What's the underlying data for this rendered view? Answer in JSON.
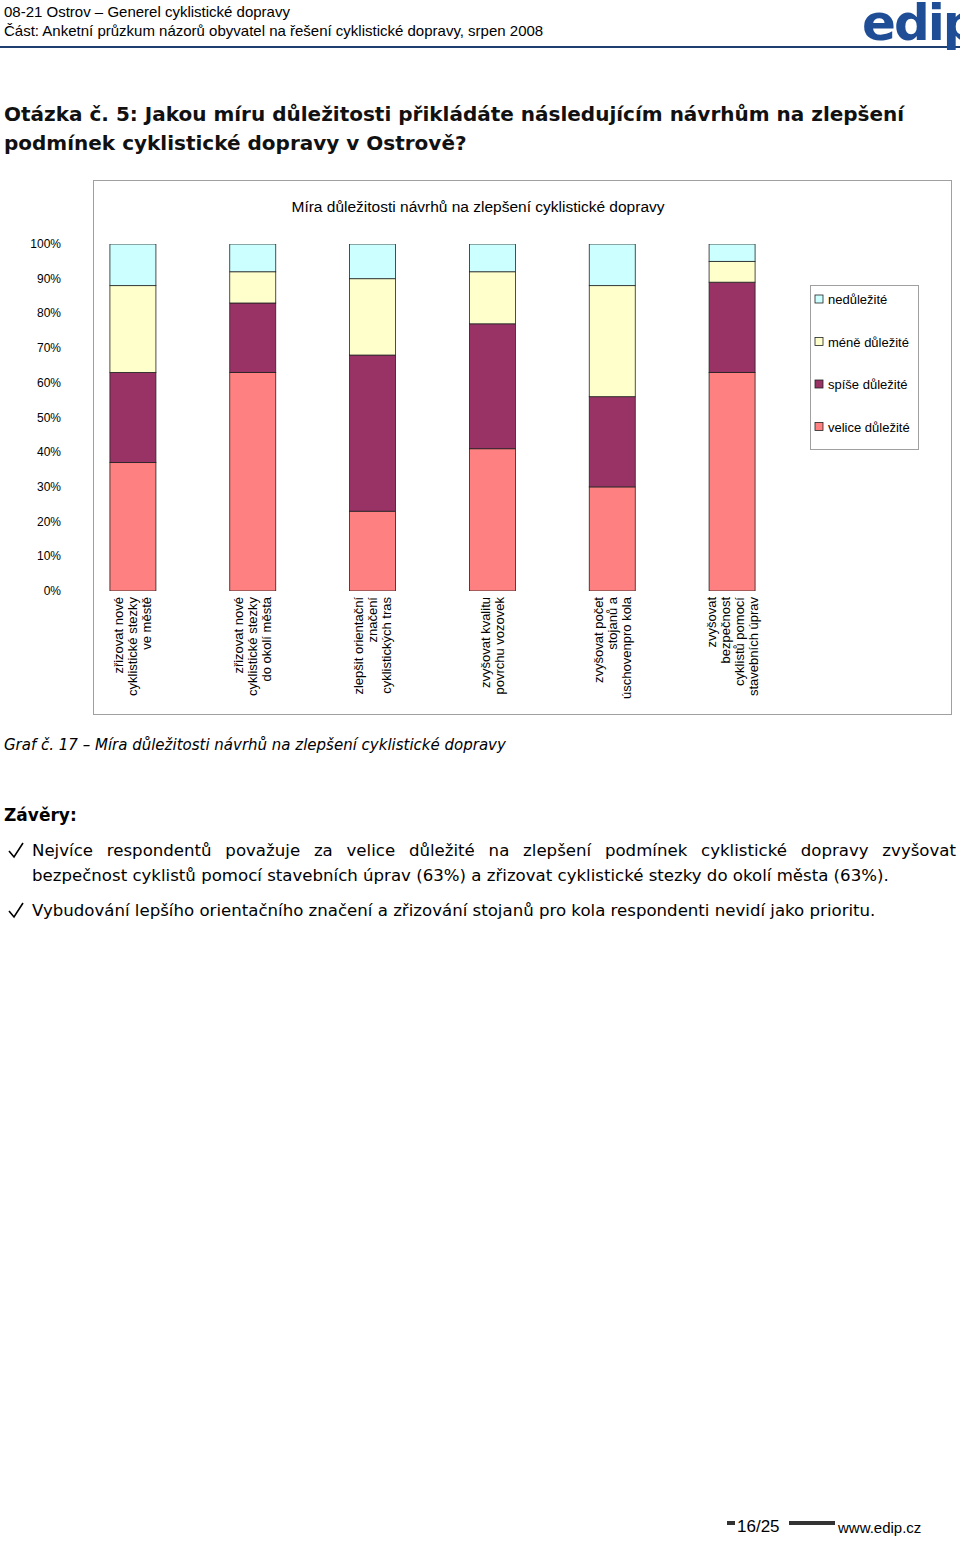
{
  "header": {
    "project": "08-21 Ostrov – Generel cyklistické dopravy",
    "part": "Část: Anketní průzkum názorů obyvatel na řešení cyklistické dopravy, srpen 2008",
    "logo": "edip"
  },
  "question": "Otázka č. 5: Jakou míru důležitosti přikládáte následujícím návrhům na zlepšení podmínek cyklistické dopravy v Ostrově?",
  "chart_data": {
    "type": "bar",
    "stacked": true,
    "title": "Míra důležitosti návrhů na zlepšení cyklistické dopravy",
    "categories": [
      "zřizovat nové\ncyklistické stezky\nve městě",
      "zřizovat nové\ncyklistické stezky\ndo okolí města",
      "zlepšit orientační\nznačení\ncyklistických tras",
      "zvyšovat kvalitu\npovrchu vozovek",
      "zvyšovat počet\nstojanů a\núschovenpro kola",
      "zvyšovat\nbezpečnost\ncyklistů pomocí\nstavebních úprav"
    ],
    "series": [
      {
        "name": "velice důležité",
        "color": "#FF8080",
        "values": [
          37,
          63,
          23,
          41,
          30,
          63
        ]
      },
      {
        "name": "spíše důležité",
        "color": "#993366",
        "values": [
          26,
          20,
          45,
          36,
          26,
          26
        ]
      },
      {
        "name": "méně důležité",
        "color": "#FFFFCC",
        "values": [
          25,
          9,
          22,
          15,
          32,
          6
        ]
      },
      {
        "name": "nedůležité",
        "color": "#CCFFFF",
        "values": [
          12,
          8,
          10,
          8,
          12,
          5
        ]
      }
    ],
    "ylim": [
      0,
      100
    ],
    "yticks": [
      {
        "value": 0,
        "label": "0%"
      },
      {
        "value": 10,
        "label": "10%"
      },
      {
        "value": 20,
        "label": "20%"
      },
      {
        "value": 30,
        "label": "30%"
      },
      {
        "value": 40,
        "label": "40%"
      },
      {
        "value": 50,
        "label": "50%"
      },
      {
        "value": 60,
        "label": "60%"
      },
      {
        "value": 70,
        "label": "70%"
      },
      {
        "value": 80,
        "label": "80%"
      },
      {
        "value": 90,
        "label": "90%"
      },
      {
        "value": 100,
        "label": "100%"
      }
    ],
    "grid": false,
    "legend": "right"
  },
  "caption": "Graf č. 17 – Míra důležitosti návrhů na zlepšení cyklistické dopravy",
  "conclusions": {
    "title": "Závěry:",
    "items": [
      "Nejvíce respondentů považuje za velice důležité na zlepšení podmínek cyklistické dopravy zvyšovat bezpečnost cyklistů pomocí stavebních úprav (63%) a zřizovat cyklistické stezky do okolí města (63%).",
      "Vybudování lepšího orientačního značení a zřizování stojanů pro kola respondenti nevidí jako prioritu."
    ]
  },
  "footer": {
    "page": "16/25",
    "url": "www.edip.cz"
  }
}
